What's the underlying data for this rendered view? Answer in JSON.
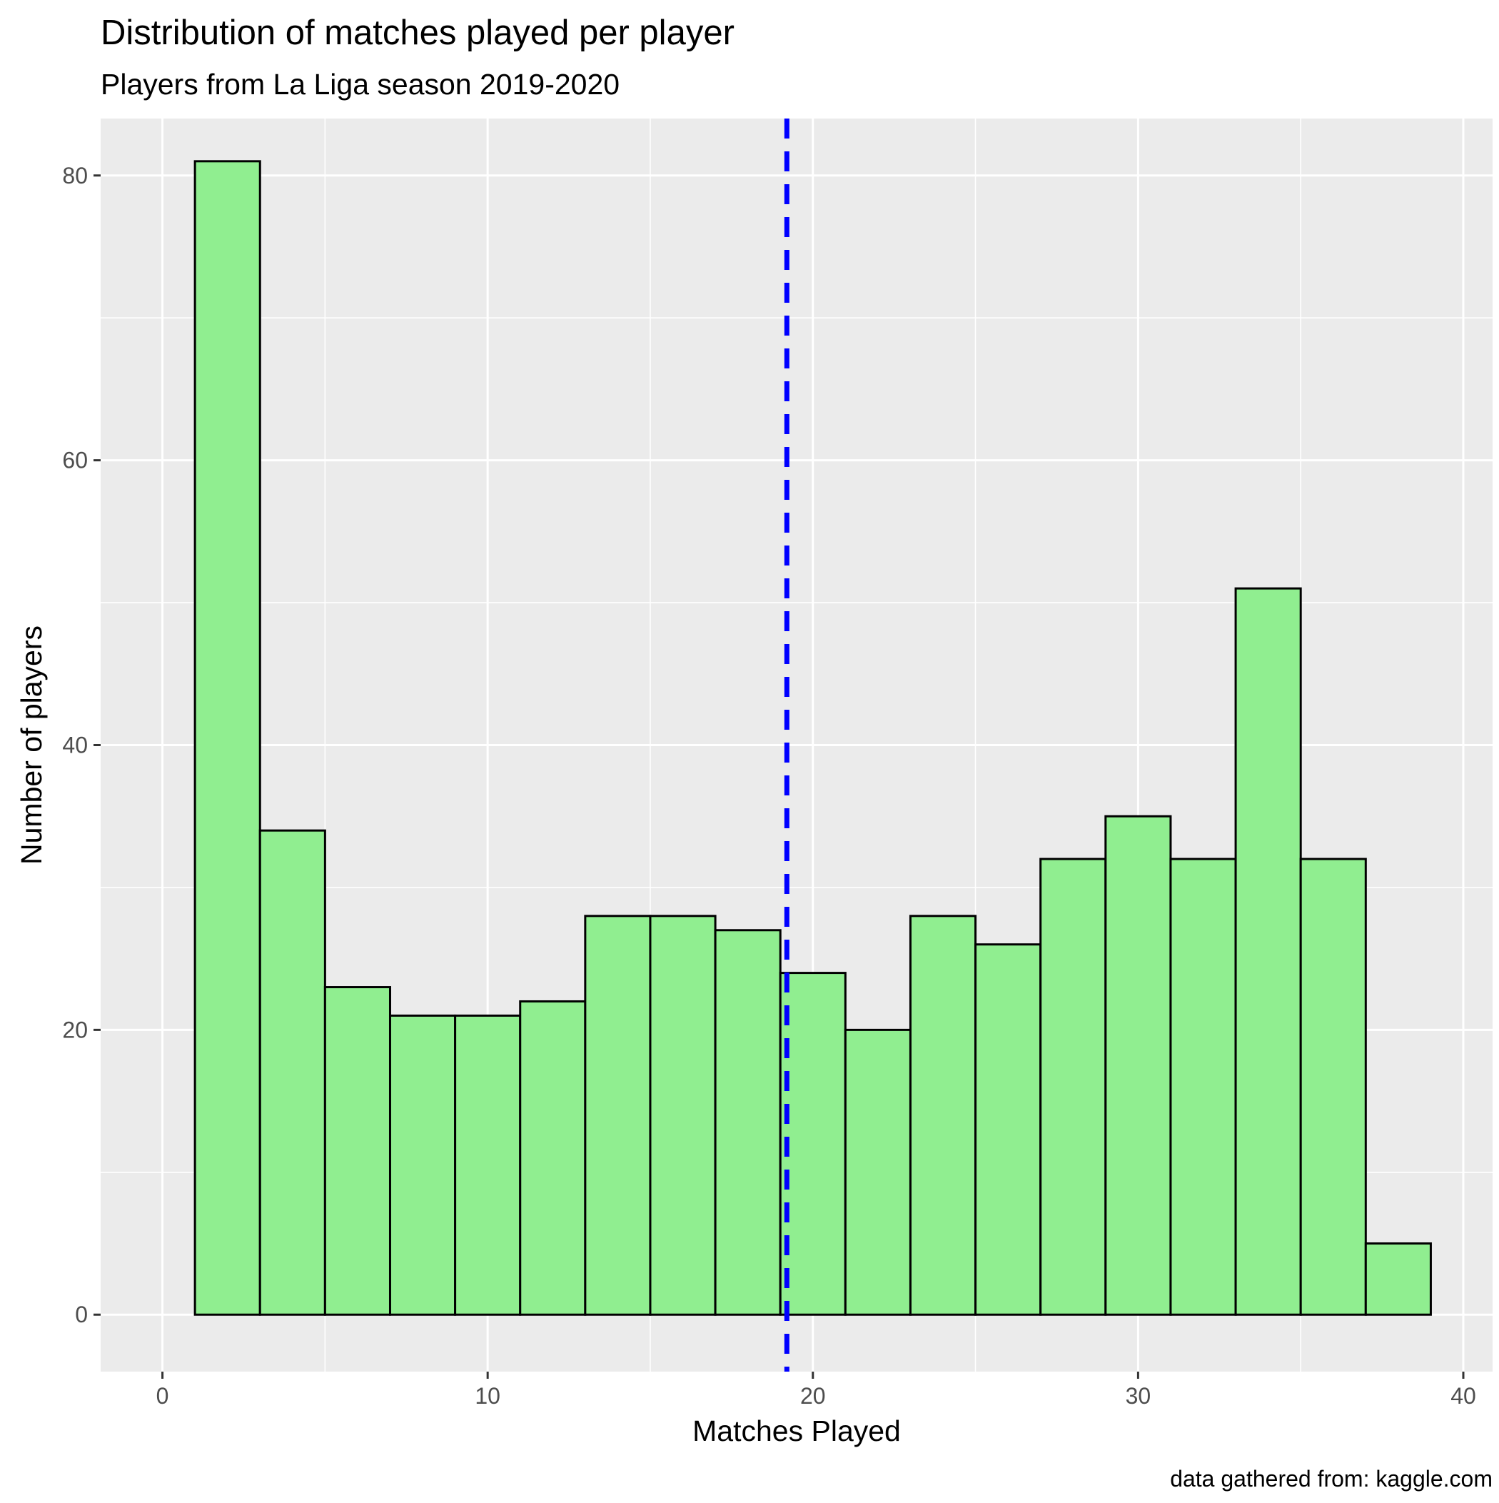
{
  "chart_data": {
    "type": "bar",
    "title": "Distribution of matches played per player",
    "subtitle": "Players from La Liga season 2019-2020",
    "xlabel": "Matches Played",
    "ylabel": "Number of players",
    "caption": "data gathered from: kaggle.com",
    "xlim": [
      -1.9,
      40.9
    ],
    "ylim": [
      -4,
      84
    ],
    "x_ticks": [
      0,
      10,
      20,
      30,
      40
    ],
    "y_ticks": [
      0,
      20,
      40,
      60,
      80
    ],
    "bin_width": 2,
    "bins": [
      {
        "x_min": 1,
        "x_max": 3,
        "count": 81
      },
      {
        "x_min": 3,
        "x_max": 5,
        "count": 34
      },
      {
        "x_min": 5,
        "x_max": 7,
        "count": 23
      },
      {
        "x_min": 7,
        "x_max": 9,
        "count": 21
      },
      {
        "x_min": 9,
        "x_max": 11,
        "count": 21
      },
      {
        "x_min": 11,
        "x_max": 13,
        "count": 22
      },
      {
        "x_min": 13,
        "x_max": 15,
        "count": 28
      },
      {
        "x_min": 15,
        "x_max": 17,
        "count": 28
      },
      {
        "x_min": 17,
        "x_max": 19,
        "count": 27
      },
      {
        "x_min": 19,
        "x_max": 21,
        "count": 24
      },
      {
        "x_min": 21,
        "x_max": 23,
        "count": 20
      },
      {
        "x_min": 23,
        "x_max": 25,
        "count": 28
      },
      {
        "x_min": 25,
        "x_max": 27,
        "count": 26
      },
      {
        "x_min": 27,
        "x_max": 29,
        "count": 32
      },
      {
        "x_min": 29,
        "x_max": 31,
        "count": 35
      },
      {
        "x_min": 31,
        "x_max": 33,
        "count": 32
      },
      {
        "x_min": 33,
        "x_max": 35,
        "count": 51
      },
      {
        "x_min": 35,
        "x_max": 37,
        "count": 32
      },
      {
        "x_min": 37,
        "x_max": 39,
        "count": 5
      }
    ],
    "reference_line": {
      "x": 19.2,
      "style": "dashed",
      "color": "#0000ff"
    },
    "grid": true,
    "legend": "none",
    "colors": {
      "bar_fill": "#90ee90",
      "bar_outline": "#000000",
      "panel_background": "#ebebeb",
      "gridline": "#ffffff",
      "reference_line": "#0000ff"
    }
  }
}
